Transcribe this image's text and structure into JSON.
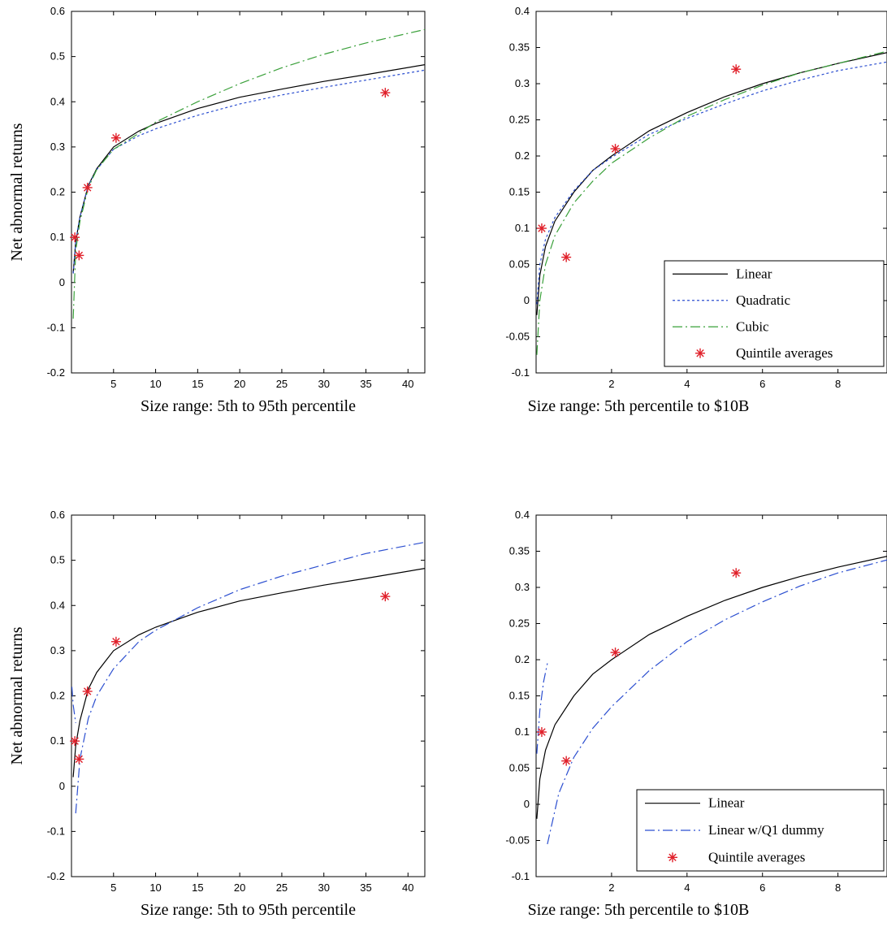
{
  "chart_data": [
    {
      "type": "line",
      "xlabel": "Size range: 5th to 95th percentile",
      "ylabel": "Net abnormal returns",
      "xlim": [
        0,
        42
      ],
      "ylim": [
        -0.2,
        0.6
      ],
      "x_ticks": [
        "5",
        "10",
        "15",
        "20",
        "25",
        "30",
        "35",
        "40"
      ],
      "y_ticks": [
        "-0.2",
        "-0.1",
        "0",
        "0.1",
        "0.2",
        "0.3",
        "0.4",
        "0.5",
        "0.6"
      ],
      "series": [
        {
          "style": "solid",
          "color": "#000000",
          "x": [
            0.2,
            0.5,
            1,
            2,
            3,
            5,
            8,
            10,
            15,
            20,
            25,
            30,
            35,
            42
          ],
          "y": [
            0.02,
            0.09,
            0.145,
            0.215,
            0.252,
            0.3,
            0.335,
            0.352,
            0.385,
            0.41,
            0.428,
            0.445,
            0.46,
            0.482
          ]
        },
        {
          "style": "dotted",
          "color": "#2c4fd0",
          "x": [
            0.2,
            0.5,
            1,
            2,
            3,
            5,
            8,
            10,
            15,
            20,
            25,
            30,
            35,
            42
          ],
          "y": [
            0.02,
            0.09,
            0.145,
            0.215,
            0.25,
            0.295,
            0.325,
            0.34,
            0.37,
            0.395,
            0.415,
            0.432,
            0.448,
            0.47
          ]
        },
        {
          "style": "dashdot",
          "color": "#3aa03a",
          "x": [
            0.2,
            0.5,
            1,
            2,
            3,
            5,
            8,
            10,
            15,
            20,
            25,
            30,
            35,
            42
          ],
          "y": [
            -0.08,
            0.07,
            0.135,
            0.21,
            0.25,
            0.295,
            0.33,
            0.355,
            0.4,
            0.44,
            0.475,
            0.505,
            0.53,
            0.56
          ]
        }
      ],
      "points": {
        "color": "#e0202a",
        "x": [
          0.4,
          0.9,
          1.9,
          5.3,
          37.3
        ],
        "y": [
          0.1,
          0.06,
          0.21,
          0.32,
          0.42
        ]
      }
    },
    {
      "type": "line",
      "xlabel": "Size range: 5th percentile to $10B",
      "ylabel": "",
      "xlim": [
        0,
        9.3
      ],
      "ylim": [
        -0.1,
        0.4
      ],
      "x_ticks": [
        "2",
        "4",
        "6",
        "8"
      ],
      "y_ticks": [
        "-0.1",
        "-0.05",
        "0",
        "0.05",
        "0.1",
        "0.15",
        "0.2",
        "0.25",
        "0.3",
        "0.35",
        "0.4"
      ],
      "series": [
        {
          "style": "solid",
          "color": "#000000",
          "x": [
            0.02,
            0.1,
            0.25,
            0.5,
            1,
            1.5,
            2,
            3,
            4,
            5,
            6,
            7,
            8,
            9.3
          ],
          "y": [
            -0.02,
            0.035,
            0.075,
            0.11,
            0.15,
            0.18,
            0.2,
            0.235,
            0.26,
            0.282,
            0.3,
            0.315,
            0.328,
            0.343
          ]
        },
        {
          "style": "dotted",
          "color": "#2c4fd0",
          "x": [
            0.02,
            0.1,
            0.25,
            0.5,
            1,
            1.5,
            2,
            3,
            4,
            5,
            6,
            7,
            8,
            9.3
          ],
          "y": [
            -0.005,
            0.05,
            0.085,
            0.115,
            0.152,
            0.18,
            0.198,
            0.23,
            0.252,
            0.272,
            0.29,
            0.305,
            0.318,
            0.33
          ]
        },
        {
          "style": "dashdot",
          "color": "#3aa03a",
          "x": [
            0.02,
            0.1,
            0.25,
            0.5,
            1,
            1.5,
            2,
            3,
            4,
            5,
            6,
            7,
            8,
            9.3
          ],
          "y": [
            -0.075,
            0.0,
            0.05,
            0.09,
            0.135,
            0.165,
            0.19,
            0.225,
            0.255,
            0.278,
            0.298,
            0.315,
            0.328,
            0.345
          ]
        }
      ],
      "points": {
        "color": "#e0202a",
        "x": [
          0.15,
          0.8,
          2.1,
          5.3
        ],
        "y": [
          0.1,
          0.06,
          0.21,
          0.32
        ]
      },
      "legend": {
        "position": "bottom-right",
        "entries": [
          {
            "label": "Linear",
            "style": "solid",
            "color": "#000000"
          },
          {
            "label": "Quadratic",
            "style": "dotted",
            "color": "#2c4fd0"
          },
          {
            "label": "Cubic",
            "style": "dashdot",
            "color": "#3aa03a"
          },
          {
            "label": "Quintile averages",
            "style": "marker",
            "color": "#e0202a"
          }
        ]
      }
    },
    {
      "type": "line",
      "xlabel": "Size range: 5th to 95th percentile",
      "ylabel": "Net abnormal returns",
      "xlim": [
        0,
        42
      ],
      "ylim": [
        -0.2,
        0.6
      ],
      "x_ticks": [
        "5",
        "10",
        "15",
        "20",
        "25",
        "30",
        "35",
        "40"
      ],
      "y_ticks": [
        "-0.2",
        "-0.1",
        "0",
        "0.1",
        "0.2",
        "0.3",
        "0.4",
        "0.5",
        "0.6"
      ],
      "series": [
        {
          "style": "solid",
          "color": "#000000",
          "x": [
            0.2,
            0.5,
            1,
            2,
            3,
            5,
            8,
            10,
            15,
            20,
            25,
            30,
            35,
            42
          ],
          "y": [
            0.02,
            0.09,
            0.145,
            0.215,
            0.252,
            0.3,
            0.335,
            0.352,
            0.385,
            0.41,
            0.428,
            0.445,
            0.46,
            0.482
          ]
        },
        {
          "style": "dashdot",
          "color": "#2c4fd0",
          "x": [
            0.05,
            0.2,
            0.5
          ],
          "y": [
            0.22,
            0.18,
            0.14
          ]
        },
        {
          "style": "dashdot",
          "color": "#2c4fd0",
          "x": [
            0.5,
            1,
            2,
            3,
            5,
            8,
            10,
            15,
            20,
            25,
            30,
            35,
            42
          ],
          "y": [
            -0.06,
            0.06,
            0.15,
            0.2,
            0.26,
            0.32,
            0.345,
            0.395,
            0.435,
            0.465,
            0.49,
            0.515,
            0.54
          ]
        }
      ],
      "points": {
        "color": "#e0202a",
        "x": [
          0.4,
          0.9,
          1.9,
          5.3,
          37.3
        ],
        "y": [
          0.1,
          0.06,
          0.21,
          0.32,
          0.42
        ]
      }
    },
    {
      "type": "line",
      "xlabel": "Size range: 5th percentile to $10B",
      "ylabel": "",
      "xlim": [
        0,
        9.3
      ],
      "ylim": [
        -0.1,
        0.4
      ],
      "x_ticks": [
        "2",
        "4",
        "6",
        "8"
      ],
      "y_ticks": [
        "-0.1",
        "-0.05",
        "0",
        "0.05",
        "0.1",
        "0.15",
        "0.2",
        "0.25",
        "0.3",
        "0.35",
        "0.4"
      ],
      "series": [
        {
          "style": "solid",
          "color": "#000000",
          "x": [
            0.02,
            0.1,
            0.25,
            0.5,
            1,
            1.5,
            2,
            3,
            4,
            5,
            6,
            7,
            8,
            9.3
          ],
          "y": [
            -0.02,
            0.035,
            0.075,
            0.11,
            0.15,
            0.18,
            0.2,
            0.235,
            0.26,
            0.282,
            0.3,
            0.315,
            0.328,
            0.343
          ]
        },
        {
          "style": "dashdot",
          "color": "#2c4fd0",
          "x": [
            0.02,
            0.1,
            0.2,
            0.3
          ],
          "y": [
            0.07,
            0.13,
            0.17,
            0.195
          ]
        },
        {
          "style": "dashdot",
          "color": "#2c4fd0",
          "x": [
            0.3,
            0.6,
            1,
            1.5,
            2,
            3,
            4,
            5,
            6,
            7,
            8,
            9.3
          ],
          "y": [
            -0.055,
            0.015,
            0.065,
            0.105,
            0.135,
            0.185,
            0.225,
            0.255,
            0.28,
            0.302,
            0.32,
            0.338
          ]
        }
      ],
      "points": {
        "color": "#e0202a",
        "x": [
          0.15,
          0.8,
          2.1,
          5.3
        ],
        "y": [
          0.1,
          0.06,
          0.21,
          0.32
        ]
      },
      "legend": {
        "position": "bottom-right",
        "entries": [
          {
            "label": "Linear",
            "style": "solid",
            "color": "#000000"
          },
          {
            "label": "Linear w/Q1 dummy",
            "style": "dashdot",
            "color": "#2c4fd0"
          },
          {
            "label": "Quintile averages",
            "style": "marker",
            "color": "#e0202a"
          }
        ]
      }
    }
  ]
}
